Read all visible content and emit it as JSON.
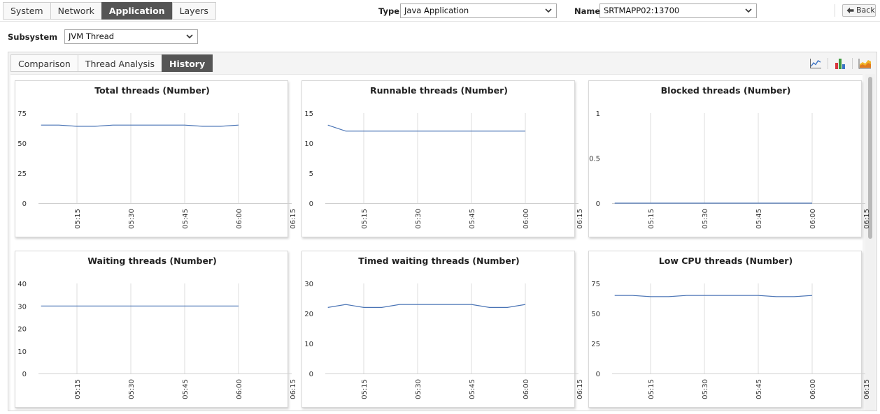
{
  "top": {
    "tabs": [
      {
        "label": "System",
        "active": false
      },
      {
        "label": "Network",
        "active": false
      },
      {
        "label": "Application",
        "active": true
      },
      {
        "label": "Layers",
        "active": false
      }
    ],
    "type_label": "Type",
    "type_value": "Java Application",
    "name_label": "Name",
    "name_value": "SRTMAPP02:13700",
    "back_label": "Back"
  },
  "subsystem": {
    "label": "Subsystem",
    "value": "JVM Thread"
  },
  "panel": {
    "tabs": [
      {
        "label": "Comparison",
        "active": false
      },
      {
        "label": "Thread Analysis",
        "active": false
      },
      {
        "label": "History",
        "active": true
      }
    ],
    "view_icons": [
      "line-chart-icon",
      "bar-chart-icon",
      "area-chart-icon"
    ]
  },
  "chart_data": [
    {
      "type": "line",
      "title": "Total threads (Number)",
      "x": [
        "05:05",
        "05:10",
        "05:15",
        "05:20",
        "05:25",
        "05:30",
        "05:35",
        "05:40",
        "05:45",
        "05:50",
        "05:55",
        "06:00"
      ],
      "xticks": [
        "05:15",
        "05:30",
        "05:45",
        "06:00",
        "06:15"
      ],
      "yticks": [
        0,
        25,
        50,
        75
      ],
      "ylim": [
        0,
        75
      ],
      "values": [
        65,
        65,
        64,
        64,
        65,
        65,
        65,
        65,
        65,
        64,
        64,
        65
      ],
      "color": "#4a74b5"
    },
    {
      "type": "line",
      "title": "Runnable threads (Number)",
      "x": [
        "05:05",
        "05:10",
        "05:15",
        "05:20",
        "05:25",
        "05:30",
        "05:35",
        "05:40",
        "05:45",
        "05:50",
        "05:55",
        "06:00"
      ],
      "xticks": [
        "05:15",
        "05:30",
        "05:45",
        "06:00",
        "06:15"
      ],
      "yticks": [
        0,
        5,
        10,
        15
      ],
      "ylim": [
        0,
        15
      ],
      "values": [
        13,
        12,
        12,
        12,
        12,
        12,
        12,
        12,
        12,
        12,
        12,
        12
      ],
      "color": "#4a74b5"
    },
    {
      "type": "line",
      "title": "Blocked threads (Number)",
      "x": [
        "05:05",
        "05:10",
        "05:15",
        "05:20",
        "05:25",
        "05:30",
        "05:35",
        "05:40",
        "05:45",
        "05:50",
        "05:55",
        "06:00"
      ],
      "xticks": [
        "05:15",
        "05:30",
        "05:45",
        "06:00",
        "06:15"
      ],
      "yticks": [
        0,
        0.5,
        1
      ],
      "ylim": [
        0,
        1
      ],
      "values": [
        0,
        0,
        0,
        0,
        0,
        0,
        0,
        0,
        0,
        0,
        0,
        0
      ],
      "color": "#4a74b5"
    },
    {
      "type": "line",
      "title": "Waiting threads (Number)",
      "x": [
        "05:05",
        "05:10",
        "05:15",
        "05:20",
        "05:25",
        "05:30",
        "05:35",
        "05:40",
        "05:45",
        "05:50",
        "05:55",
        "06:00"
      ],
      "xticks": [
        "05:15",
        "05:30",
        "05:45",
        "06:00",
        "06:15"
      ],
      "yticks": [
        0,
        10,
        20,
        30,
        40
      ],
      "ylim": [
        0,
        40
      ],
      "values": [
        30,
        30,
        30,
        30,
        30,
        30,
        30,
        30,
        30,
        30,
        30,
        30
      ],
      "color": "#4a74b5"
    },
    {
      "type": "line",
      "title": "Timed waiting threads (Number)",
      "x": [
        "05:05",
        "05:10",
        "05:15",
        "05:20",
        "05:25",
        "05:30",
        "05:35",
        "05:40",
        "05:45",
        "05:50",
        "05:55",
        "06:00"
      ],
      "xticks": [
        "05:15",
        "05:30",
        "05:45",
        "06:00",
        "06:15"
      ],
      "yticks": [
        0,
        10,
        20,
        30
      ],
      "ylim": [
        0,
        30
      ],
      "values": [
        22,
        23,
        22,
        22,
        23,
        23,
        23,
        23,
        23,
        22,
        22,
        23
      ],
      "color": "#4a74b5"
    },
    {
      "type": "line",
      "title": "Low CPU threads (Number)",
      "x": [
        "05:05",
        "05:10",
        "05:15",
        "05:20",
        "05:25",
        "05:30",
        "05:35",
        "05:40",
        "05:45",
        "05:50",
        "05:55",
        "06:00"
      ],
      "xticks": [
        "05:15",
        "05:30",
        "05:45",
        "06:00",
        "06:15"
      ],
      "yticks": [
        0,
        25,
        50,
        75
      ],
      "ylim": [
        0,
        75
      ],
      "values": [
        65,
        65,
        64,
        64,
        65,
        65,
        65,
        65,
        65,
        64,
        64,
        65
      ],
      "color": "#4a74b5"
    }
  ]
}
